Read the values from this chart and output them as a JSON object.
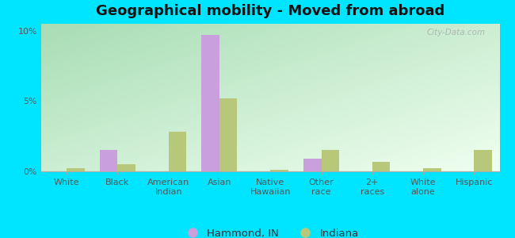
{
  "title": "Geographical mobility - Moved from abroad",
  "categories": [
    "White",
    "Black",
    "American\nIndian",
    "Asian",
    "Native\nHawaiian",
    "Other\nrace",
    "2+\nraces",
    "White\nalone",
    "Hispanic"
  ],
  "hammond_values": [
    0.0,
    1.5,
    0.0,
    9.7,
    0.0,
    0.9,
    0.0,
    0.0,
    0.0
  ],
  "indiana_values": [
    0.2,
    0.5,
    2.8,
    5.2,
    0.1,
    1.5,
    0.7,
    0.2,
    1.5
  ],
  "hammond_color": "#c9a0dc",
  "indiana_color": "#b8c87a",
  "bar_width": 0.35,
  "ylim_max": 10.5,
  "yticks": [
    0,
    5,
    10
  ],
  "ytick_labels": [
    "0%",
    "5%",
    "10%"
  ],
  "bg_color_outer": "#00e5ff",
  "bg_gradient_top_left": "#a8ddb5",
  "bg_gradient_bottom_right": "#f0fff0",
  "legend_hammond": "Hammond, IN",
  "legend_indiana": "Indiana",
  "watermark": "City-Data.com",
  "title_fontsize": 13,
  "tick_fontsize": 8,
  "legend_fontsize": 9.5
}
